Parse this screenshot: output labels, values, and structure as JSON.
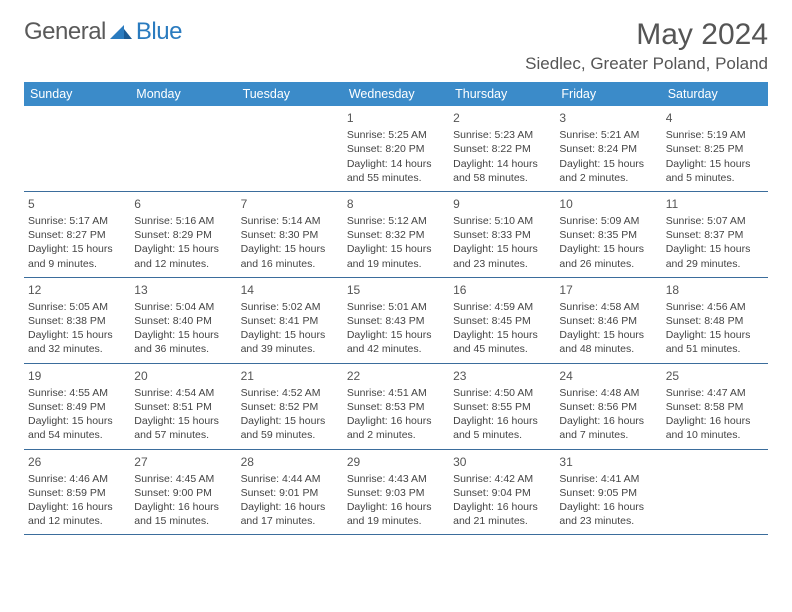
{
  "logo": {
    "text_general": "General",
    "text_blue": "Blue"
  },
  "title": "May 2024",
  "location": "Siedlec, Greater Poland, Poland",
  "colors": {
    "header_bg": "#3b8bc9",
    "header_text": "#ffffff",
    "divider": "#3b6d9c",
    "body_text": "#444444",
    "title_text": "#555555"
  },
  "day_names": [
    "Sunday",
    "Monday",
    "Tuesday",
    "Wednesday",
    "Thursday",
    "Friday",
    "Saturday"
  ],
  "weeks": [
    [
      {
        "n": "",
        "sr": "",
        "ss": "",
        "dl": ""
      },
      {
        "n": "",
        "sr": "",
        "ss": "",
        "dl": ""
      },
      {
        "n": "",
        "sr": "",
        "ss": "",
        "dl": ""
      },
      {
        "n": "1",
        "sr": "Sunrise: 5:25 AM",
        "ss": "Sunset: 8:20 PM",
        "dl": "Daylight: 14 hours and 55 minutes."
      },
      {
        "n": "2",
        "sr": "Sunrise: 5:23 AM",
        "ss": "Sunset: 8:22 PM",
        "dl": "Daylight: 14 hours and 58 minutes."
      },
      {
        "n": "3",
        "sr": "Sunrise: 5:21 AM",
        "ss": "Sunset: 8:24 PM",
        "dl": "Daylight: 15 hours and 2 minutes."
      },
      {
        "n": "4",
        "sr": "Sunrise: 5:19 AM",
        "ss": "Sunset: 8:25 PM",
        "dl": "Daylight: 15 hours and 5 minutes."
      }
    ],
    [
      {
        "n": "5",
        "sr": "Sunrise: 5:17 AM",
        "ss": "Sunset: 8:27 PM",
        "dl": "Daylight: 15 hours and 9 minutes."
      },
      {
        "n": "6",
        "sr": "Sunrise: 5:16 AM",
        "ss": "Sunset: 8:29 PM",
        "dl": "Daylight: 15 hours and 12 minutes."
      },
      {
        "n": "7",
        "sr": "Sunrise: 5:14 AM",
        "ss": "Sunset: 8:30 PM",
        "dl": "Daylight: 15 hours and 16 minutes."
      },
      {
        "n": "8",
        "sr": "Sunrise: 5:12 AM",
        "ss": "Sunset: 8:32 PM",
        "dl": "Daylight: 15 hours and 19 minutes."
      },
      {
        "n": "9",
        "sr": "Sunrise: 5:10 AM",
        "ss": "Sunset: 8:33 PM",
        "dl": "Daylight: 15 hours and 23 minutes."
      },
      {
        "n": "10",
        "sr": "Sunrise: 5:09 AM",
        "ss": "Sunset: 8:35 PM",
        "dl": "Daylight: 15 hours and 26 minutes."
      },
      {
        "n": "11",
        "sr": "Sunrise: 5:07 AM",
        "ss": "Sunset: 8:37 PM",
        "dl": "Daylight: 15 hours and 29 minutes."
      }
    ],
    [
      {
        "n": "12",
        "sr": "Sunrise: 5:05 AM",
        "ss": "Sunset: 8:38 PM",
        "dl": "Daylight: 15 hours and 32 minutes."
      },
      {
        "n": "13",
        "sr": "Sunrise: 5:04 AM",
        "ss": "Sunset: 8:40 PM",
        "dl": "Daylight: 15 hours and 36 minutes."
      },
      {
        "n": "14",
        "sr": "Sunrise: 5:02 AM",
        "ss": "Sunset: 8:41 PM",
        "dl": "Daylight: 15 hours and 39 minutes."
      },
      {
        "n": "15",
        "sr": "Sunrise: 5:01 AM",
        "ss": "Sunset: 8:43 PM",
        "dl": "Daylight: 15 hours and 42 minutes."
      },
      {
        "n": "16",
        "sr": "Sunrise: 4:59 AM",
        "ss": "Sunset: 8:45 PM",
        "dl": "Daylight: 15 hours and 45 minutes."
      },
      {
        "n": "17",
        "sr": "Sunrise: 4:58 AM",
        "ss": "Sunset: 8:46 PM",
        "dl": "Daylight: 15 hours and 48 minutes."
      },
      {
        "n": "18",
        "sr": "Sunrise: 4:56 AM",
        "ss": "Sunset: 8:48 PM",
        "dl": "Daylight: 15 hours and 51 minutes."
      }
    ],
    [
      {
        "n": "19",
        "sr": "Sunrise: 4:55 AM",
        "ss": "Sunset: 8:49 PM",
        "dl": "Daylight: 15 hours and 54 minutes."
      },
      {
        "n": "20",
        "sr": "Sunrise: 4:54 AM",
        "ss": "Sunset: 8:51 PM",
        "dl": "Daylight: 15 hours and 57 minutes."
      },
      {
        "n": "21",
        "sr": "Sunrise: 4:52 AM",
        "ss": "Sunset: 8:52 PM",
        "dl": "Daylight: 15 hours and 59 minutes."
      },
      {
        "n": "22",
        "sr": "Sunrise: 4:51 AM",
        "ss": "Sunset: 8:53 PM",
        "dl": "Daylight: 16 hours and 2 minutes."
      },
      {
        "n": "23",
        "sr": "Sunrise: 4:50 AM",
        "ss": "Sunset: 8:55 PM",
        "dl": "Daylight: 16 hours and 5 minutes."
      },
      {
        "n": "24",
        "sr": "Sunrise: 4:48 AM",
        "ss": "Sunset: 8:56 PM",
        "dl": "Daylight: 16 hours and 7 minutes."
      },
      {
        "n": "25",
        "sr": "Sunrise: 4:47 AM",
        "ss": "Sunset: 8:58 PM",
        "dl": "Daylight: 16 hours and 10 minutes."
      }
    ],
    [
      {
        "n": "26",
        "sr": "Sunrise: 4:46 AM",
        "ss": "Sunset: 8:59 PM",
        "dl": "Daylight: 16 hours and 12 minutes."
      },
      {
        "n": "27",
        "sr": "Sunrise: 4:45 AM",
        "ss": "Sunset: 9:00 PM",
        "dl": "Daylight: 16 hours and 15 minutes."
      },
      {
        "n": "28",
        "sr": "Sunrise: 4:44 AM",
        "ss": "Sunset: 9:01 PM",
        "dl": "Daylight: 16 hours and 17 minutes."
      },
      {
        "n": "29",
        "sr": "Sunrise: 4:43 AM",
        "ss": "Sunset: 9:03 PM",
        "dl": "Daylight: 16 hours and 19 minutes."
      },
      {
        "n": "30",
        "sr": "Sunrise: 4:42 AM",
        "ss": "Sunset: 9:04 PM",
        "dl": "Daylight: 16 hours and 21 minutes."
      },
      {
        "n": "31",
        "sr": "Sunrise: 4:41 AM",
        "ss": "Sunset: 9:05 PM",
        "dl": "Daylight: 16 hours and 23 minutes."
      },
      {
        "n": "",
        "sr": "",
        "ss": "",
        "dl": ""
      }
    ]
  ]
}
